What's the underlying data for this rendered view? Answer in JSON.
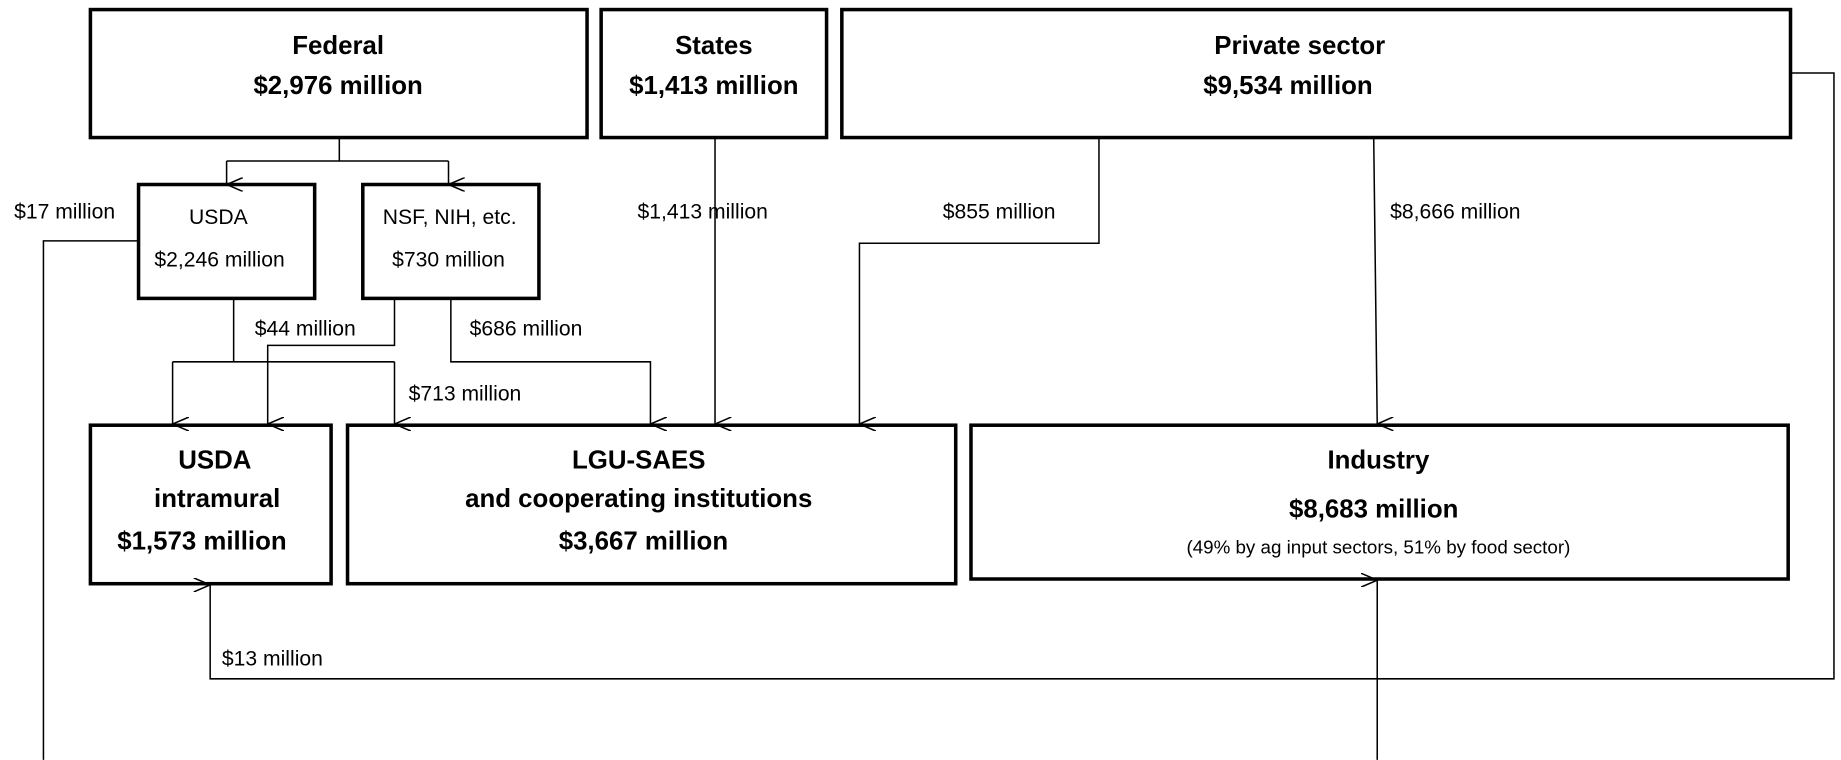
{
  "nodes": [
    {
      "lines": [
        "Federal",
        "$2,976 million"
      ]
    },
    {
      "lines": [
        "States",
        "$1,413 million"
      ]
    },
    {
      "lines": [
        "Private sector",
        "$9,534 million"
      ]
    },
    {
      "lines": [
        "USDA",
        "$2,246 million"
      ]
    },
    {
      "lines": [
        "NSF, NIH, etc.",
        "$730 million"
      ]
    },
    {
      "lines": [
        "USDA",
        "intramural",
        "$1,573 million"
      ]
    },
    {
      "lines": [
        "LGU-SAES",
        "and cooperating institutions",
        "$3,667 million"
      ]
    },
    {
      "lines": [
        "Industry",
        "$8,683 million",
        "(49% by ag input sectors, 51% by food sector)"
      ]
    }
  ],
  "edges": [
    {
      "label": "$17 million"
    },
    {
      "label": "$44 million"
    },
    {
      "label": "$713 million"
    },
    {
      "label": "$686 million"
    },
    {
      "label": "$1,413 million"
    },
    {
      "label": "$855 million"
    },
    {
      "label": "$8,666 million"
    },
    {
      "label": "$13 million"
    }
  ]
}
